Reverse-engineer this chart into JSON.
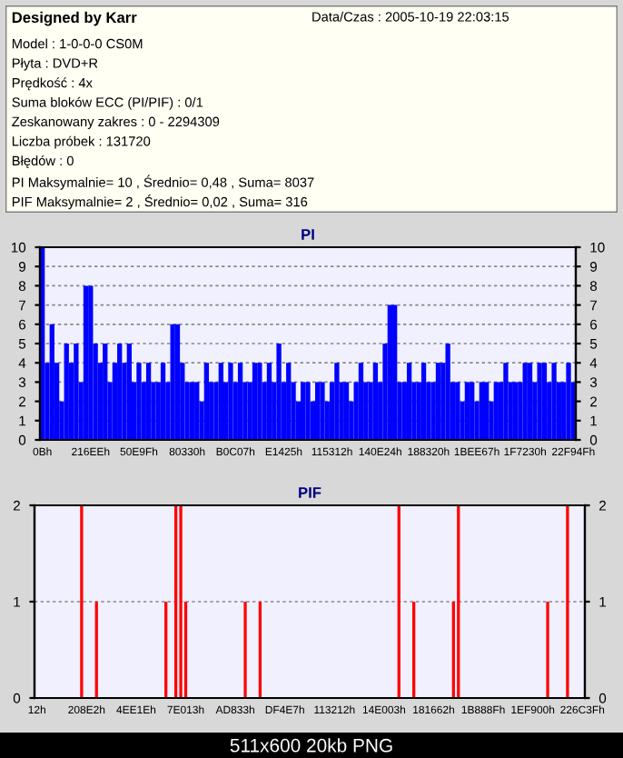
{
  "chart_data": [
    {
      "type": "other",
      "title": "Designed by Karr",
      "subtitle": "Data/Czas : 2005-10-19 22:03:15",
      "annotations": [
        "Model : 1-0-0-0 CS0M",
        "Płyta : DVD+R",
        "Prędkość : 4x",
        "Suma bloków ECC (PI/PIF) : 0/1",
        "Zeskanowany zakres : 0 - 2294309",
        "Liczba próbek : 131720",
        "Błędów : 0",
        "PI Maksymalnie= 10 , Średnio= 0,48 , Suma= 8037",
        "PIF Maksymalnie= 2 , Średnio= 0,02 , Suma= 316",
        "511x600 20kb PNG"
      ]
    },
    {
      "type": "bar",
      "title": "PI",
      "color": "#0000ff",
      "categories": [
        "0Bh",
        null,
        null,
        null,
        null,
        null,
        null,
        null,
        null,
        null,
        "216EEh",
        null,
        null,
        null,
        null,
        null,
        null,
        null,
        null,
        null,
        "50E9Fh",
        null,
        null,
        null,
        null,
        null,
        null,
        null,
        null,
        null,
        "80330h",
        null,
        null,
        null,
        null,
        null,
        null,
        null,
        null,
        null,
        "B0C07h",
        null,
        null,
        null,
        null,
        null,
        null,
        null,
        null,
        null,
        "E1425h",
        null,
        null,
        null,
        null,
        null,
        null,
        null,
        null,
        null,
        "115312h",
        null,
        null,
        null,
        null,
        null,
        null,
        null,
        null,
        null,
        "140E24h",
        null,
        null,
        null,
        null,
        null,
        null,
        null,
        null,
        null,
        "188320h",
        null,
        null,
        null,
        null,
        null,
        null,
        null,
        null,
        null,
        "1BEE67h",
        null,
        null,
        null,
        null,
        null,
        null,
        null,
        null,
        null,
        "1F7230h",
        null,
        null,
        null,
        null,
        null,
        null,
        null,
        null,
        null,
        "22F94Fh"
      ],
      "values": [
        10,
        4,
        6,
        4,
        2,
        5,
        4,
        5,
        3,
        8,
        8,
        5,
        4,
        5,
        3,
        4,
        5,
        4,
        5,
        3,
        4,
        3,
        4,
        3,
        3,
        4,
        3,
        6,
        6,
        4,
        3,
        3,
        3,
        2,
        4,
        3,
        3,
        4,
        3,
        4,
        3,
        4,
        3,
        3,
        4,
        4,
        3,
        4,
        3,
        5,
        3,
        4,
        3,
        2,
        3,
        3,
        2,
        3,
        3,
        2,
        3,
        4,
        3,
        3,
        2,
        3,
        4,
        3,
        3,
        4,
        3,
        5,
        7,
        7,
        3,
        3,
        4,
        3,
        3,
        4,
        3,
        3,
        4,
        4,
        5,
        3,
        3,
        2,
        3,
        3,
        2,
        3,
        3,
        2,
        3,
        3,
        4,
        3,
        3,
        3,
        4,
        4,
        3,
        4,
        4,
        3,
        4,
        3,
        3,
        4,
        3
      ],
      "ylim": [
        0,
        10
      ],
      "yticks": [
        0,
        1,
        2,
        3,
        4,
        5,
        6,
        7,
        8,
        9,
        10
      ],
      "y2lim": [
        0,
        10
      ],
      "y2ticks": [
        0,
        1,
        2,
        3,
        4,
        5,
        6,
        7,
        8,
        9,
        10
      ],
      "grid": "y"
    },
    {
      "type": "bar",
      "title": "PIF",
      "color": "#ff0000",
      "categories": [
        "12h",
        null,
        null,
        null,
        null,
        null,
        null,
        null,
        null,
        null,
        "208E2h",
        null,
        null,
        null,
        null,
        null,
        null,
        null,
        null,
        null,
        "4EE1Eh",
        null,
        null,
        null,
        null,
        null,
        null,
        null,
        null,
        null,
        "7E013h",
        null,
        null,
        null,
        null,
        null,
        null,
        null,
        null,
        null,
        "AD833h",
        null,
        null,
        null,
        null,
        null,
        null,
        null,
        null,
        null,
        "DF4E7h",
        null,
        null,
        null,
        null,
        null,
        null,
        null,
        null,
        null,
        "113212h",
        null,
        null,
        null,
        null,
        null,
        null,
        null,
        null,
        null,
        "14E003h",
        null,
        null,
        null,
        null,
        null,
        null,
        null,
        null,
        null,
        "181662h",
        null,
        null,
        null,
        null,
        null,
        null,
        null,
        null,
        null,
        "1B888Fh",
        null,
        null,
        null,
        null,
        null,
        null,
        null,
        null,
        null,
        "1EF900h",
        null,
        null,
        null,
        null,
        null,
        null,
        null,
        null,
        null,
        "226C3Fh"
      ],
      "values": [
        0,
        0,
        0,
        0,
        0,
        0,
        0,
        0,
        0,
        2,
        0,
        0,
        1,
        0,
        0,
        0,
        0,
        0,
        0,
        0,
        0,
        0,
        0,
        0,
        0,
        0,
        1,
        0,
        2,
        2,
        1,
        0,
        0,
        0,
        0,
        0,
        0,
        0,
        0,
        0,
        0,
        0,
        1,
        0,
        0,
        1,
        0,
        0,
        0,
        0,
        0,
        0,
        0,
        0,
        0,
        0,
        0,
        0,
        0,
        0,
        0,
        0,
        0,
        0,
        0,
        0,
        0,
        0,
        0,
        0,
        0,
        0,
        0,
        2,
        0,
        0,
        1,
        0,
        0,
        0,
        0,
        0,
        0,
        0,
        1,
        2,
        0,
        0,
        0,
        0,
        0,
        0,
        0,
        0,
        0,
        0,
        0,
        0,
        0,
        0,
        0,
        0,
        0,
        1,
        0,
        0,
        0,
        2,
        0,
        0,
        0
      ],
      "ylim": [
        0,
        2
      ],
      "yticks": [
        0,
        1,
        2
      ],
      "y2lim": [
        0,
        2
      ],
      "y2ticks": [
        0,
        1,
        2
      ],
      "grid": "y"
    }
  ]
}
